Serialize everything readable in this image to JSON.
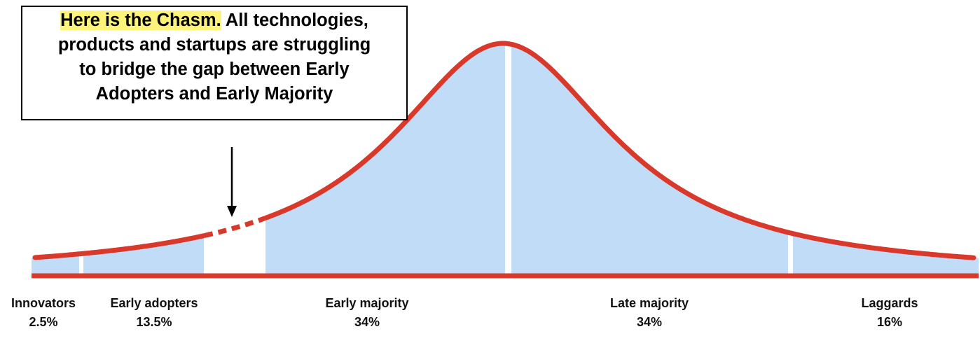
{
  "callout": {
    "highlight": "Here is the Chasm.",
    "lines": [
      "All technologies,",
      "products and startups are struggling",
      "to bridge the gap between Early",
      "Adopters and Early Majority"
    ]
  },
  "segments": [
    {
      "label": "Innovators",
      "share": "2.5%"
    },
    {
      "label": "Early adopters",
      "share": "13.5%"
    },
    {
      "label": "Early majority",
      "share": "34%"
    },
    {
      "label": "Late majority",
      "share": "34%"
    },
    {
      "label": "Laggards",
      "share": "16%"
    }
  ]
}
